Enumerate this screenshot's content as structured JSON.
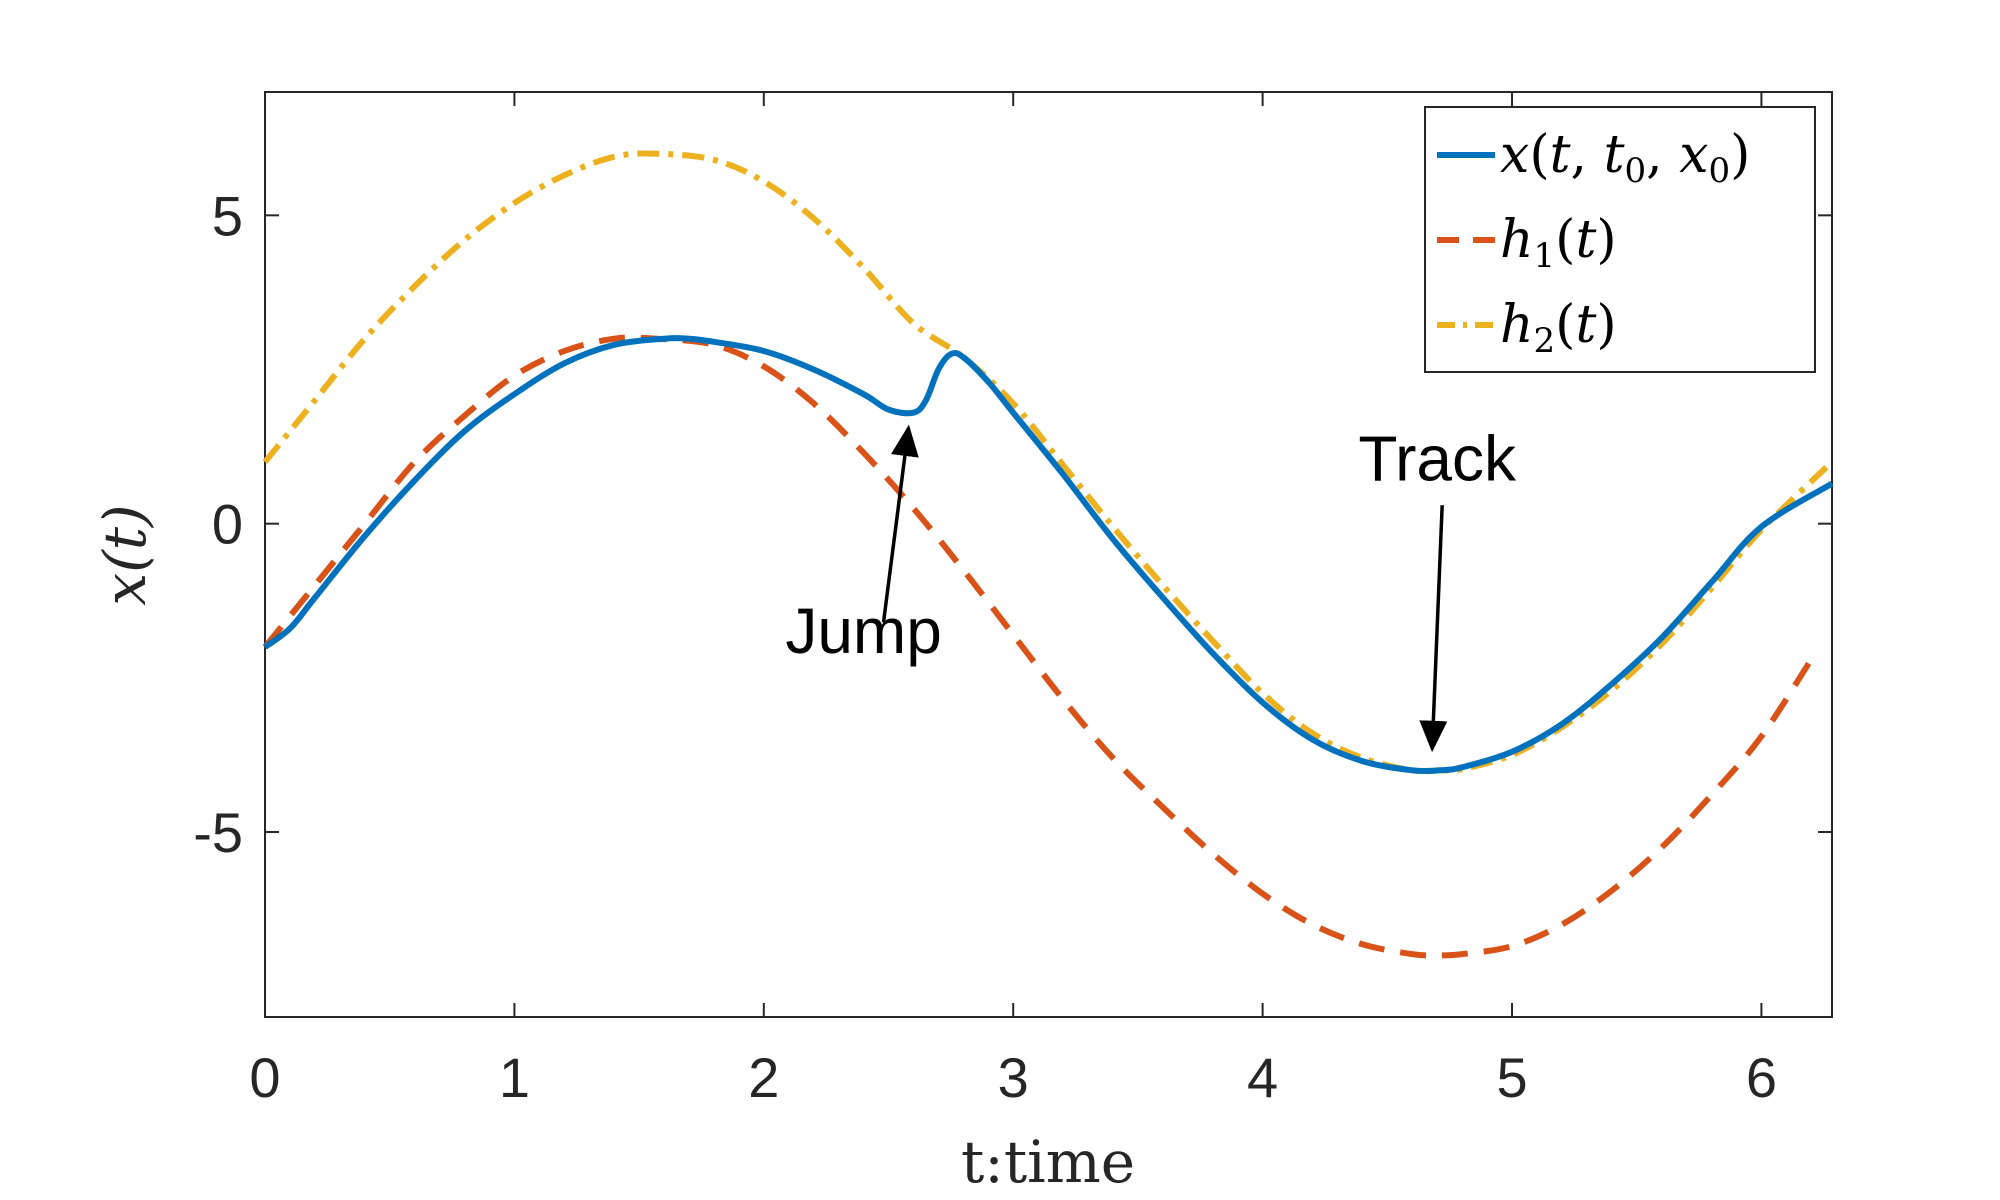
{
  "chart_data": {
    "type": "line",
    "title": "",
    "xlabel": "t:time",
    "ylabel": "x(t)",
    "xlim": [
      0,
      6.283
    ],
    "ylim": [
      -8,
      7
    ],
    "xticks": [
      0,
      1,
      2,
      3,
      4,
      5,
      6
    ],
    "yticks": [
      -5,
      0,
      5
    ],
    "xtick_labels": [
      "0",
      "1",
      "2",
      "3",
      "4",
      "5",
      "6"
    ],
    "ytick_labels": [
      "-5",
      "0",
      "5"
    ],
    "grid": false,
    "legend_position": "top-right",
    "series": [
      {
        "name": "x(t,t_0,x_0)",
        "color": "#0072BD",
        "style": "solid",
        "x": [
          0,
          0.1,
          0.2,
          0.4,
          0.6,
          0.8,
          1.0,
          1.2,
          1.4,
          1.6,
          1.7,
          1.8,
          2.0,
          2.2,
          2.4,
          2.5,
          2.6,
          2.65,
          2.7,
          2.75,
          2.8,
          2.9,
          3.0,
          3.2,
          3.4,
          3.6,
          3.8,
          4.0,
          4.2,
          4.4,
          4.6,
          4.712,
          4.8,
          5.0,
          5.2,
          5.4,
          5.6,
          5.8,
          6.0,
          6.283
        ],
        "y": [
          -2.0,
          -1.7,
          -1.2,
          -0.2,
          0.7,
          1.5,
          2.1,
          2.6,
          2.9,
          3.0,
          3.0,
          2.95,
          2.8,
          2.5,
          2.1,
          1.85,
          1.8,
          2.0,
          2.5,
          2.75,
          2.7,
          2.3,
          1.8,
          0.8,
          -0.25,
          -1.2,
          -2.1,
          -2.9,
          -3.5,
          -3.85,
          -4.0,
          -4.0,
          -3.95,
          -3.7,
          -3.25,
          -2.6,
          -1.85,
          -0.95,
          -0.05,
          0.65
        ]
      },
      {
        "name": "h_1(t)",
        "color": "#D95319",
        "style": "dashed",
        "x": [
          0,
          0.2,
          0.4,
          0.6,
          0.8,
          1.0,
          1.2,
          1.4,
          1.571,
          1.8,
          2.0,
          2.2,
          2.4,
          2.6,
          2.8,
          3.0,
          3.2,
          3.4,
          3.6,
          3.8,
          4.0,
          4.2,
          4.4,
          4.6,
          4.712,
          4.8,
          5.0,
          5.2,
          5.4,
          5.6,
          5.8,
          6.0,
          6.2
        ],
        "y": [
          -2.0,
          -1.0,
          0.0,
          1.0,
          1.75,
          2.4,
          2.8,
          3.0,
          3.0,
          2.9,
          2.55,
          1.95,
          1.15,
          0.25,
          -0.75,
          -1.8,
          -2.85,
          -3.8,
          -4.6,
          -5.35,
          -6.0,
          -6.5,
          -6.82,
          -6.98,
          -7.0,
          -6.98,
          -6.85,
          -6.5,
          -5.95,
          -5.25,
          -4.4,
          -3.45,
          -2.2
        ]
      },
      {
        "name": "h_2(t)",
        "color": "#EDB120",
        "style": "dashdot",
        "x": [
          0,
          0.2,
          0.4,
          0.6,
          0.8,
          1.0,
          1.2,
          1.4,
          1.571,
          1.8,
          2.0,
          2.2,
          2.4,
          2.6,
          2.8,
          3.0,
          3.2,
          3.4,
          3.6,
          3.8,
          4.0,
          4.2,
          4.4,
          4.6,
          4.712,
          4.8,
          5.0,
          5.2,
          5.4,
          5.6,
          5.8,
          6.0,
          6.283
        ],
        "y": [
          1.0,
          2.0,
          3.0,
          3.85,
          4.6,
          5.2,
          5.65,
          5.95,
          6.0,
          5.9,
          5.55,
          4.95,
          4.15,
          3.25,
          2.7,
          1.95,
          0.95,
          -0.05,
          -1.0,
          -1.9,
          -2.75,
          -3.4,
          -3.8,
          -4.0,
          -4.0,
          -3.98,
          -3.75,
          -3.3,
          -2.7,
          -1.95,
          -1.05,
          -0.1,
          1.0
        ]
      }
    ],
    "annotations": [
      {
        "text": "Jump",
        "arrow_to": [
          2.58,
          1.55
        ],
        "arrow_from": [
          2.48,
          -1.6
        ],
        "label_at": [
          2.4,
          -2.1
        ]
      },
      {
        "text": "Track",
        "arrow_to": [
          4.68,
          -3.65
        ],
        "arrow_from": [
          4.72,
          0.3
        ],
        "label_at": [
          4.7,
          0.7
        ]
      }
    ]
  }
}
